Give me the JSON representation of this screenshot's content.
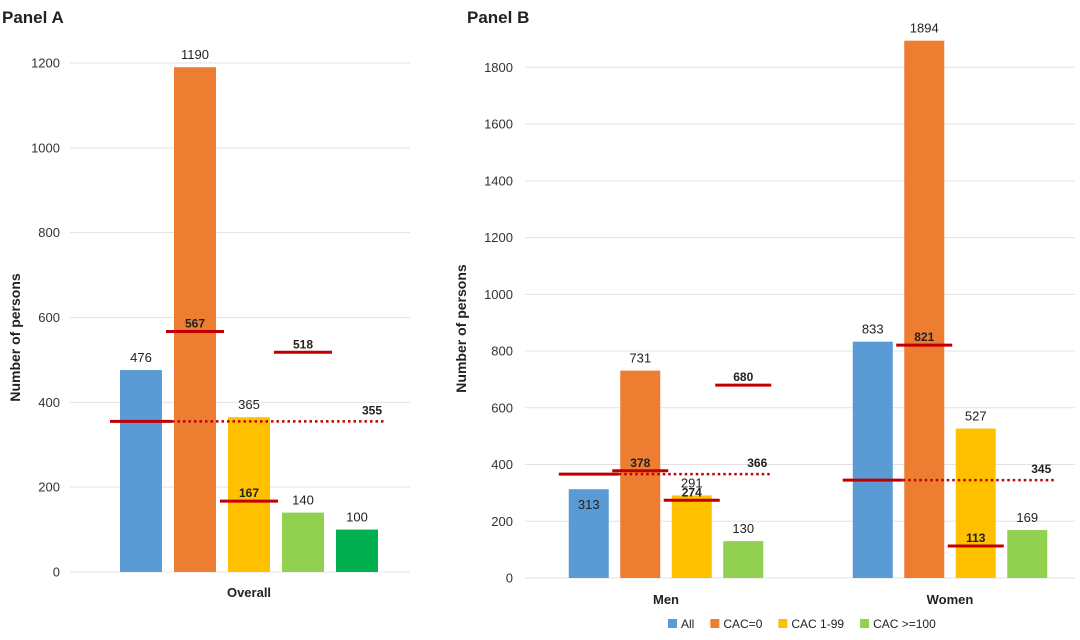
{
  "colors": {
    "All": "#5b9bd5",
    "CAC=0": "#ed7d31",
    "CAC 1-99": "#ffc000",
    "CAC >=100": "#92d050",
    "CAC >=100 (overall)": "#00b050",
    "median_line": "#c00000"
  },
  "legend": {
    "placement": "bottom-right",
    "items": [
      "All",
      "CAC=0",
      "CAC 1-99",
      "CAC >=100"
    ]
  },
  "chart_data": [
    {
      "type": "bar",
      "title": "Panel A",
      "ylabel": "Number of persons",
      "ylim": [
        0,
        1200
      ],
      "yticks": [
        0,
        200,
        400,
        600,
        800,
        1000,
        1200
      ],
      "grid": true,
      "categories": [
        "Overall"
      ],
      "series": [
        {
          "name": "All",
          "values": [
            476
          ]
        },
        {
          "name": "CAC=0",
          "values": [
            1190
          ]
        },
        {
          "name": "CAC 1-99",
          "values": [
            365
          ]
        },
        {
          "name": "CAC >=100",
          "values": [
            140
          ]
        },
        {
          "name": "CAC >=100 (overall)",
          "values": [
            100
          ]
        }
      ],
      "median_lines": [
        {
          "category": "Overall",
          "series": "All",
          "value": 355,
          "label": "355",
          "dotted": true
        },
        {
          "category": "Overall",
          "series": "CAC=0",
          "value": 567,
          "label": "567"
        },
        {
          "category": "Overall",
          "series": "CAC 1-99",
          "value": 167,
          "label": "167"
        },
        {
          "category": "Overall",
          "series": "CAC >=100",
          "value": 518,
          "label": "518"
        }
      ]
    },
    {
      "type": "bar",
      "title": "Panel B",
      "ylabel": "Number of persons",
      "ylim": [
        0,
        1900
      ],
      "yticks": [
        0,
        200,
        400,
        600,
        800,
        1000,
        1200,
        1400,
        1600,
        1800
      ],
      "grid": true,
      "categories": [
        "Men",
        "Women"
      ],
      "series": [
        {
          "name": "All",
          "values": [
            313,
            833
          ]
        },
        {
          "name": "CAC=0",
          "values": [
            731,
            1894
          ]
        },
        {
          "name": "CAC 1-99",
          "values": [
            291,
            527
          ]
        },
        {
          "name": "CAC >=100",
          "values": [
            130,
            169
          ]
        }
      ],
      "median_lines": [
        {
          "category": "Men",
          "series": "All",
          "value": 366,
          "label": "366",
          "dotted": true
        },
        {
          "category": "Men",
          "series": "CAC=0",
          "value": 378,
          "label": "378"
        },
        {
          "category": "Men",
          "series": "CAC 1-99",
          "value": 274,
          "label": "274"
        },
        {
          "category": "Men",
          "series": "CAC >=100",
          "value": 680,
          "label": "680"
        },
        {
          "category": "Women",
          "series": "All",
          "value": 345,
          "label": "345",
          "dotted": true
        },
        {
          "category": "Women",
          "series": "CAC=0",
          "value": 821,
          "label": "821"
        },
        {
          "category": "Women",
          "series": "CAC 1-99",
          "value": 113,
          "label": "113"
        }
      ]
    }
  ]
}
